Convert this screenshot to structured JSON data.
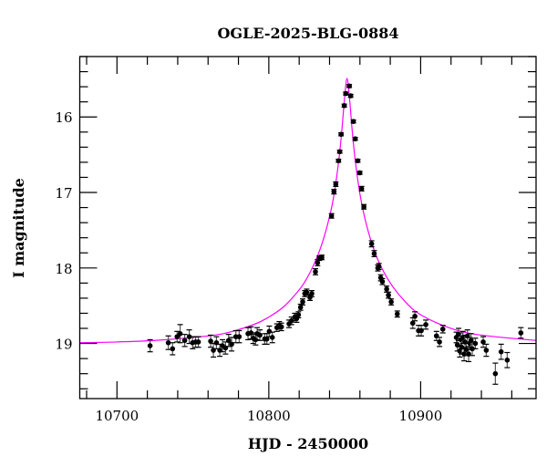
{
  "chart_data": {
    "type": "scatter",
    "title": "OGLE-2025-BLG-0884",
    "xlabel": "HJD - 2450000",
    "ylabel": "I magnitude",
    "xlim": [
      10675.5,
      10976
    ],
    "ylim": [
      19.73,
      15.2
    ],
    "y_inverted": true,
    "grid": false,
    "x_ticks": [
      10700,
      10800,
      10900
    ],
    "x_tick_labels": [
      "10700",
      "10800",
      "10900"
    ],
    "x_minor_step": 20,
    "y_ticks": [
      16,
      17,
      18,
      19
    ],
    "y_tick_labels": [
      "16",
      "17",
      "18",
      "19"
    ],
    "y_minor_step": 0.2,
    "colors": {
      "points": "#000000",
      "model": "#ff00ff",
      "errorbars": "#555555"
    },
    "series": [
      {
        "kind": "points_with_errorbars",
        "points": [
          [
            10721.8,
            19.03,
            0.08
          ],
          [
            10733.8,
            18.99,
            0.09
          ],
          [
            10736.6,
            19.07,
            0.08
          ],
          [
            10739.6,
            18.91,
            0.07
          ],
          [
            10741.6,
            18.87,
            0.12
          ],
          [
            10744.6,
            18.96,
            0.08
          ],
          [
            10747.6,
            18.91,
            0.09
          ],
          [
            10749.8,
            18.99,
            0.08
          ],
          [
            10751.8,
            18.98,
            0.07
          ],
          [
            10753.6,
            18.98,
            0.07
          ],
          [
            10761.7,
            18.97,
            0.08
          ],
          [
            10763.5,
            19.09,
            0.09
          ],
          [
            10765.5,
            18.99,
            0.08
          ],
          [
            10767.7,
            19.09,
            0.08
          ],
          [
            10769.5,
            19.03,
            0.08
          ],
          [
            10771.5,
            19.06,
            0.08
          ],
          [
            10773.5,
            18.96,
            0.08
          ],
          [
            10775.5,
            19.01,
            0.09
          ],
          [
            10778.3,
            18.91,
            0.08
          ],
          [
            10780.5,
            18.91,
            0.08
          ],
          [
            10786.3,
            18.87,
            0.08
          ],
          [
            10788.3,
            18.86,
            0.08
          ],
          [
            10789.7,
            18.93,
            0.07
          ],
          [
            10791.3,
            18.95,
            0.07
          ],
          [
            10792.3,
            18.87,
            0.08
          ],
          [
            10794.1,
            18.89,
            0.07
          ],
          [
            10797.3,
            18.94,
            0.07
          ],
          [
            10798.7,
            18.94,
            0.07
          ],
          [
            10800.3,
            18.84,
            0.07
          ],
          [
            10802.3,
            18.92,
            0.07
          ],
          [
            10805.3,
            18.79,
            0.05
          ],
          [
            10806.9,
            18.76,
            0.05
          ],
          [
            10808.3,
            18.78,
            0.05
          ],
          [
            10813.3,
            18.74,
            0.05
          ],
          [
            10814.9,
            18.7,
            0.05
          ],
          [
            10817.1,
            18.65,
            0.05
          ],
          [
            10818.3,
            18.67,
            0.05
          ],
          [
            10819.5,
            18.62,
            0.04
          ],
          [
            10820.9,
            18.52,
            0.04
          ],
          [
            10822.3,
            18.45,
            0.04
          ],
          [
            10823.7,
            18.34,
            0.04
          ],
          [
            10824.9,
            18.32,
            0.04
          ],
          [
            10827.1,
            18.39,
            0.04
          ],
          [
            10828.3,
            18.34,
            0.04
          ],
          [
            10830.7,
            18.05,
            0.04
          ],
          [
            10832.1,
            17.93,
            0.04
          ],
          [
            10833.3,
            17.87,
            0.03
          ],
          [
            10834.9,
            17.86,
            0.03
          ],
          [
            10841.3,
            17.31,
            0.03
          ],
          [
            10842.9,
            16.99,
            0.03
          ],
          [
            10844.1,
            16.89,
            0.03
          ],
          [
            10845.9,
            16.58,
            0.02
          ],
          [
            10846.7,
            16.46,
            0.02
          ],
          [
            10847.6,
            16.23,
            0.02
          ],
          [
            10849.7,
            15.85,
            0.02
          ],
          [
            10850.7,
            15.69,
            0.02
          ],
          [
            10853.0,
            15.59,
            0.02
          ],
          [
            10853.9,
            15.72,
            0.02
          ],
          [
            10855.7,
            16.06,
            0.02
          ],
          [
            10856.9,
            16.29,
            0.02
          ],
          [
            10858.6,
            16.58,
            0.02
          ],
          [
            10859.9,
            16.74,
            0.02
          ],
          [
            10861.1,
            16.95,
            0.03
          ],
          [
            10862.6,
            17.19,
            0.03
          ],
          [
            10867.7,
            17.68,
            0.04
          ],
          [
            10869.4,
            17.81,
            0.04
          ],
          [
            10871.8,
            18.0,
            0.04
          ],
          [
            10872.5,
            17.98,
            0.04
          ],
          [
            10873.7,
            18.13,
            0.04
          ],
          [
            10874.8,
            18.18,
            0.04
          ],
          [
            10877.6,
            18.28,
            0.04
          ],
          [
            10878.8,
            18.36,
            0.04
          ],
          [
            10880.6,
            18.45,
            0.04
          ],
          [
            10884.6,
            18.61,
            0.04
          ],
          [
            10894.8,
            18.73,
            0.07
          ],
          [
            10896.2,
            18.64,
            0.06
          ],
          [
            10898.6,
            18.83,
            0.07
          ],
          [
            10900.4,
            18.83,
            0.07
          ],
          [
            10903.4,
            18.75,
            0.06
          ],
          [
            10910.4,
            18.9,
            0.06
          ],
          [
            10912.4,
            18.98,
            0.06
          ],
          [
            10914.6,
            18.81,
            0.05
          ],
          [
            10923.5,
            18.92,
            0.07
          ],
          [
            10924.2,
            19.02,
            0.08
          ],
          [
            10925.0,
            18.88,
            0.08
          ],
          [
            10925.8,
            19.1,
            0.08
          ],
          [
            10926.5,
            18.95,
            0.09
          ],
          [
            10927.0,
            19.05,
            0.09
          ],
          [
            10927.8,
            18.92,
            0.08
          ],
          [
            10928.6,
            19.14,
            0.09
          ],
          [
            10929.2,
            18.98,
            0.09
          ],
          [
            10930.0,
            19.08,
            0.08
          ],
          [
            10930.8,
            18.9,
            0.08
          ],
          [
            10931.6,
            19.14,
            0.1
          ],
          [
            10932.4,
            19.0,
            0.08
          ],
          [
            10933.2,
            18.96,
            0.09
          ],
          [
            10934.0,
            19.07,
            0.09
          ],
          [
            10936.0,
            19.0,
            0.07
          ],
          [
            10941.2,
            18.98,
            0.07
          ],
          [
            10943.2,
            19.09,
            0.08
          ],
          [
            10949.2,
            19.4,
            0.14
          ],
          [
            10953.0,
            19.11,
            0.1
          ],
          [
            10957.0,
            19.22,
            0.1
          ],
          [
            10966.0,
            18.86,
            0.07
          ]
        ]
      },
      {
        "kind": "model_curve",
        "points": [
          [
            10675.5,
            18.99
          ],
          [
            10700,
            18.98
          ],
          [
            10725,
            18.96
          ],
          [
            10750,
            18.92
          ],
          [
            10770,
            18.87
          ],
          [
            10790,
            18.75
          ],
          [
            10800,
            18.65
          ],
          [
            10810,
            18.51
          ],
          [
            10820,
            18.29
          ],
          [
            10825,
            18.14
          ],
          [
            10830,
            17.94
          ],
          [
            10835,
            17.68
          ],
          [
            10840,
            17.32
          ],
          [
            10843,
            17.02
          ],
          [
            10846,
            16.59
          ],
          [
            10848,
            16.2
          ],
          [
            10850,
            15.72
          ],
          [
            10851.5,
            15.49
          ],
          [
            10853,
            15.72
          ],
          [
            10855,
            16.2
          ],
          [
            10857,
            16.59
          ],
          [
            10860,
            17.02
          ],
          [
            10863,
            17.32
          ],
          [
            10867,
            17.62
          ],
          [
            10872,
            17.9
          ],
          [
            10880,
            18.2
          ],
          [
            10890,
            18.45
          ],
          [
            10900,
            18.62
          ],
          [
            10920,
            18.8
          ],
          [
            10940,
            18.89
          ],
          [
            10976,
            18.96
          ]
        ]
      }
    ]
  }
}
